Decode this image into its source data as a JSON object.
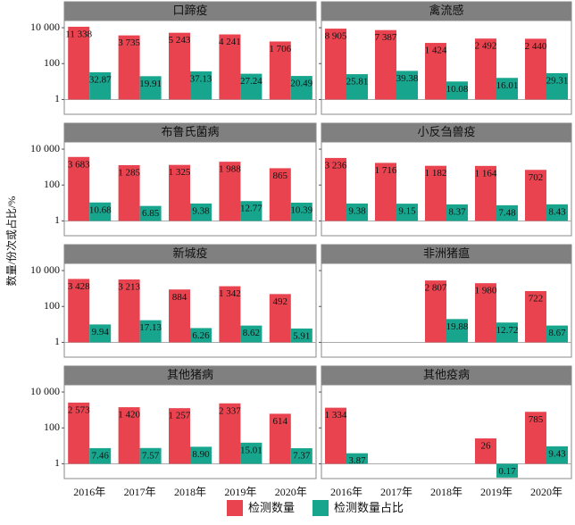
{
  "y_label": "数量/份次或占比/%",
  "chart_data": [
    {
      "type": "bar",
      "title": "口蹄疫",
      "log_scale": true,
      "ylim": [
        0.15,
        20000
      ],
      "yticks": [
        {
          "value": 10000,
          "label": "10 000"
        },
        100,
        1
      ],
      "categories": [
        "2016年",
        "2017年",
        "2018年",
        "2019年",
        "2020年"
      ],
      "series": [
        {
          "name": "检测数量",
          "color": "#e8434f",
          "values": [
            11338,
            3735,
            5243,
            4241,
            1706
          ],
          "value_labels": [
            "11 338",
            "3 735",
            "5 243",
            "4 241",
            "1 706"
          ]
        },
        {
          "name": "检测数量占比",
          "color": "#17a58d",
          "values": [
            32.87,
            19.91,
            37.13,
            27.24,
            20.49
          ]
        }
      ]
    },
    {
      "type": "bar",
      "title": "禽流感",
      "log_scale": true,
      "ylim": [
        0.15,
        20000
      ],
      "yticks": [
        {
          "value": 10000,
          "label": "10 000"
        },
        100,
        1
      ],
      "categories": [
        "2016年",
        "2017年",
        "2018年",
        "2019年",
        "2020年"
      ],
      "series": [
        {
          "name": "检测数量",
          "color": "#e8434f",
          "values": [
            8905,
            7387,
            1424,
            2492,
            2440
          ],
          "value_labels": [
            "8 905",
            "7 387",
            "1 424",
            "2 492",
            "2 440"
          ]
        },
        {
          "name": "检测数量占比",
          "color": "#17a58d",
          "values": [
            25.81,
            39.38,
            10.08,
            16.01,
            29.31
          ]
        }
      ]
    },
    {
      "type": "bar",
      "title": "布鲁氏菌病",
      "log_scale": true,
      "ylim": [
        0.15,
        20000
      ],
      "yticks": [
        {
          "value": 10000,
          "label": "10 000"
        },
        100,
        1
      ],
      "categories": [
        "2016年",
        "2017年",
        "2018年",
        "2019年",
        "2020年"
      ],
      "series": [
        {
          "name": "检测数量",
          "color": "#e8434f",
          "values": [
            3683,
            1285,
            1325,
            1988,
            865
          ],
          "value_labels": [
            "3 683",
            "1 285",
            "1 325",
            "1 988",
            "865"
          ]
        },
        {
          "name": "检测数量占比",
          "color": "#17a58d",
          "values": [
            10.68,
            6.85,
            9.38,
            12.77,
            10.39
          ]
        }
      ]
    },
    {
      "type": "bar",
      "title": "小反刍兽疫",
      "log_scale": true,
      "ylim": [
        0.15,
        20000
      ],
      "yticks": [
        {
          "value": 10000,
          "label": "10 000"
        },
        100,
        1
      ],
      "categories": [
        "2016年",
        "2017年",
        "2018年",
        "2019年",
        "2020年"
      ],
      "series": [
        {
          "name": "检测数量",
          "color": "#e8434f",
          "values": [
            3236,
            1716,
            1182,
            1164,
            702
          ],
          "value_labels": [
            "3 236",
            "1 716",
            "1 182",
            "1 164",
            "702"
          ]
        },
        {
          "name": "检测数量占比",
          "color": "#17a58d",
          "values": [
            9.38,
            9.15,
            8.37,
            7.48,
            8.43
          ]
        }
      ]
    },
    {
      "type": "bar",
      "title": "新城疫",
      "log_scale": true,
      "ylim": [
        0.15,
        20000
      ],
      "yticks": [
        {
          "value": 10000,
          "label": "10 000"
        },
        100,
        1
      ],
      "categories": [
        "2016年",
        "2017年",
        "2018年",
        "2019年",
        "2020年"
      ],
      "series": [
        {
          "name": "检测数量",
          "color": "#e8434f",
          "values": [
            3428,
            3213,
            884,
            1342,
            492
          ],
          "value_labels": [
            "3 428",
            "3 213",
            "884",
            "1 342",
            "492"
          ]
        },
        {
          "name": "检测数量占比",
          "color": "#17a58d",
          "values": [
            9.94,
            17.13,
            6.26,
            8.62,
            5.91
          ]
        }
      ]
    },
    {
      "type": "bar",
      "title": "非洲猪瘟",
      "log_scale": true,
      "ylim": [
        0.15,
        20000
      ],
      "yticks": [
        {
          "value": 10000,
          "label": "10 000"
        },
        100,
        1
      ],
      "categories": [
        "2016年",
        "2017年",
        "2018年",
        "2019年",
        "2020年"
      ],
      "series": [
        {
          "name": "检测数量",
          "color": "#e8434f",
          "values": [
            null,
            null,
            2807,
            1980,
            722
          ],
          "value_labels": [
            null,
            null,
            "2 807",
            "1 980",
            "722"
          ]
        },
        {
          "name": "检测数量占比",
          "color": "#17a58d",
          "values": [
            null,
            null,
            19.88,
            12.72,
            8.67
          ]
        }
      ]
    },
    {
      "type": "bar",
      "title": "其他猪病",
      "log_scale": true,
      "ylim": [
        0.15,
        20000
      ],
      "yticks": [
        {
          "value": 10000,
          "label": "10 000"
        },
        100,
        1
      ],
      "categories": [
        "2016年",
        "2017年",
        "2018年",
        "2019年",
        "2020年"
      ],
      "series": [
        {
          "name": "检测数量",
          "color": "#e8434f",
          "values": [
            2573,
            1420,
            1257,
            2337,
            614
          ],
          "value_labels": [
            "2 573",
            "1 420",
            "1 257",
            "2 337",
            "614"
          ]
        },
        {
          "name": "检测数量占比",
          "color": "#17a58d",
          "values": [
            7.46,
            7.57,
            8.9,
            15.01,
            7.37
          ],
          "value_labels": [
            "7.46",
            "7.57",
            "8.90",
            "15.01",
            "7.37"
          ]
        }
      ]
    },
    {
      "type": "bar",
      "title": "其他疫病",
      "log_scale": true,
      "ylim": [
        0.15,
        20000
      ],
      "yticks": [
        {
          "value": 10000,
          "label": "10 000"
        },
        100,
        1
      ],
      "categories": [
        "2016年",
        "2017年",
        "2018年",
        "2019年",
        "2020年"
      ],
      "series": [
        {
          "name": "检测数量",
          "color": "#e8434f",
          "values": [
            1334,
            null,
            null,
            26,
            785
          ],
          "value_labels": [
            "1 334",
            null,
            null,
            "26",
            "785"
          ]
        },
        {
          "name": "检测数量占比",
          "color": "#17a58d",
          "values": [
            3.87,
            null,
            null,
            0.17,
            9.43
          ]
        }
      ]
    }
  ]
}
